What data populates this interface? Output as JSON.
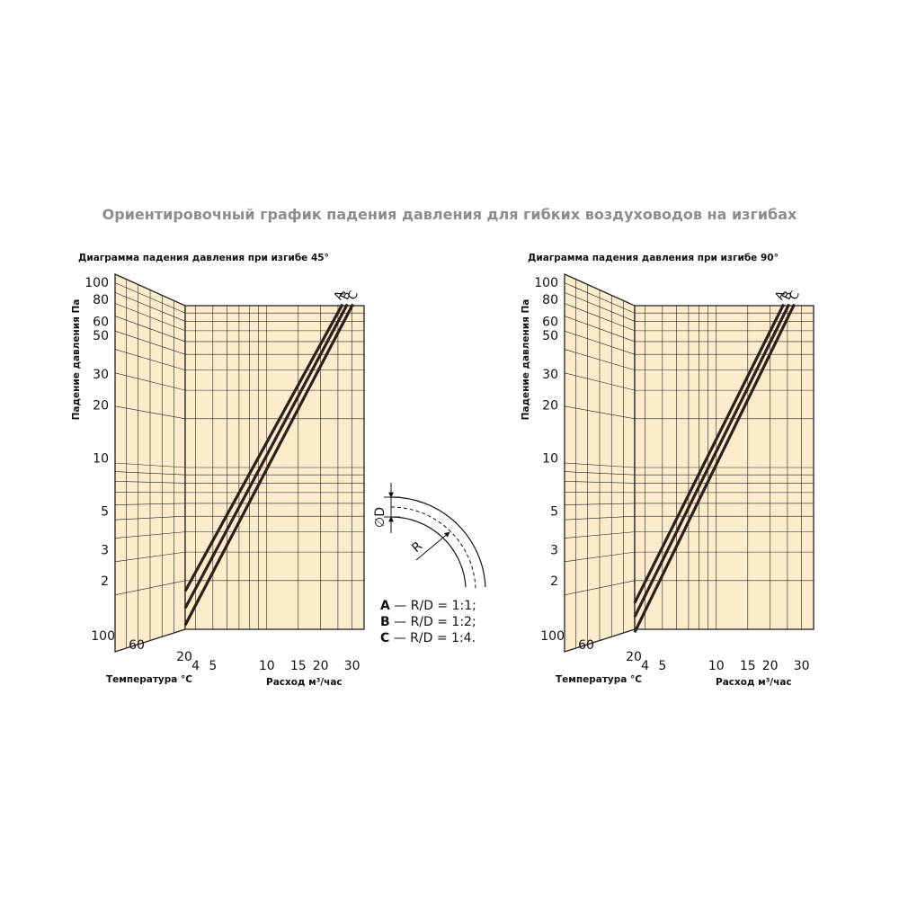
{
  "page": {
    "title": "Ориентировочный график падения давления  для гибких воздуховодов на изгибах"
  },
  "colors": {
    "panel_fill": "#fdeccb",
    "grid": "#222222",
    "curve": "#2a1f1a",
    "title": "#8c8c8c"
  },
  "legend": [
    {
      "letter": "A",
      "text": " — R/D = 1:1;"
    },
    {
      "letter": "B",
      "text": " — R/D = 1:2;"
    },
    {
      "letter": "C",
      "text": " — R/D = 1:4."
    }
  ],
  "bend_diagram": {
    "diameter_label": "∅D",
    "radius_label": "R"
  },
  "chart_data": [
    {
      "type": "line",
      "title": "Диаграмма падения давления при изгибе 45°",
      "ylabel": "Падение давления Па",
      "xlabel": "Расход м³/час",
      "temp_label": "Температура °C",
      "y_scale": "log",
      "ylim": [
        1,
        100
      ],
      "y_ticks": [
        2,
        3,
        5,
        10,
        20,
        30,
        50,
        60,
        80,
        100
      ],
      "y_tick_labels": [
        "2",
        "3",
        "5",
        "10",
        "20",
        "30",
        "50",
        "60",
        "80",
        "100"
      ],
      "x_scale": "log",
      "xlim": [
        3.5,
        35
      ],
      "x_ticks": [
        4,
        5,
        10,
        15,
        20,
        30
      ],
      "x_tick_labels": [
        "4",
        "5",
        "10",
        "15",
        "20",
        "30"
      ],
      "temp_ticks": [
        100,
        60,
        20
      ],
      "temp_tick_labels": [
        "100",
        "60",
        "20"
      ],
      "series": [
        {
          "name": "A",
          "x": [
            3.5,
            26.5
          ],
          "y": [
            1.75,
            75
          ]
        },
        {
          "name": "B",
          "x": [
            3.5,
            28.2
          ],
          "y": [
            1.4,
            75
          ]
        },
        {
          "name": "C",
          "x": [
            3.5,
            30.3
          ],
          "y": [
            1.12,
            75
          ]
        }
      ]
    },
    {
      "type": "line",
      "title": "Диаграмма падения давления при изгибе 90°",
      "ylabel": "Падение давления Па",
      "xlabel": "Расход м³/час",
      "temp_label": "Температура °C",
      "y_scale": "log",
      "ylim": [
        1,
        100
      ],
      "y_ticks": [
        2,
        3,
        5,
        10,
        20,
        30,
        50,
        60,
        80,
        100
      ],
      "y_tick_labels": [
        "2",
        "3",
        "5",
        "10",
        "20",
        "30",
        "50",
        "60",
        "80",
        "100"
      ],
      "x_scale": "log",
      "xlim": [
        3.5,
        35
      ],
      "x_ticks": [
        4,
        5,
        10,
        15,
        20,
        30
      ],
      "x_tick_labels": [
        "4",
        "5",
        "10",
        "15",
        "20",
        "30"
      ],
      "temp_ticks": [
        100,
        60,
        20
      ],
      "temp_tick_labels": [
        "100",
        "60",
        "20"
      ],
      "series": [
        {
          "name": "A",
          "x": [
            3.5,
            23.8
          ],
          "y": [
            1.5,
            75
          ]
        },
        {
          "name": "B",
          "x": [
            3.5,
            25.5
          ],
          "y": [
            1.25,
            75
          ]
        },
        {
          "name": "C",
          "x": [
            3.5,
            27.3
          ],
          "y": [
            1.02,
            75
          ]
        }
      ]
    }
  ]
}
